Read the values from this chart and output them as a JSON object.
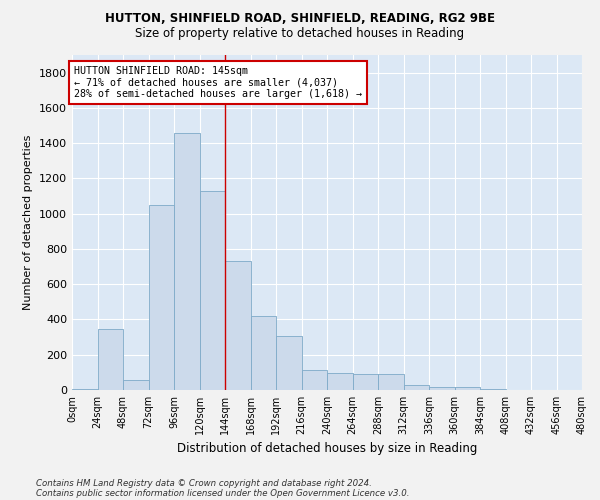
{
  "title1": "HUTTON, SHINFIELD ROAD, SHINFIELD, READING, RG2 9BE",
  "title2": "Size of property relative to detached houses in Reading",
  "xlabel": "Distribution of detached houses by size in Reading",
  "ylabel": "Number of detached properties",
  "footer1": "Contains HM Land Registry data © Crown copyright and database right 2024.",
  "footer2": "Contains public sector information licensed under the Open Government Licence v3.0.",
  "annotation_title": "HUTTON SHINFIELD ROAD: 145sqm",
  "annotation_line1": "← 71% of detached houses are smaller (4,037)",
  "annotation_line2": "28% of semi-detached houses are larger (1,618) →",
  "bar_color": "#ccdaeb",
  "bar_edge_color": "#7eaac8",
  "vline_color": "#cc0000",
  "vline_x": 144,
  "bin_edges": [
    0,
    24,
    48,
    72,
    96,
    120,
    144,
    168,
    192,
    216,
    240,
    264,
    288,
    312,
    336,
    360,
    384,
    408,
    432,
    456,
    480
  ],
  "bar_values": [
    5,
    345,
    55,
    1050,
    1460,
    1130,
    730,
    420,
    305,
    115,
    95,
    90,
    90,
    30,
    15,
    15,
    8,
    2,
    1,
    0
  ],
  "ylim": [
    0,
    1900
  ],
  "yticks": [
    0,
    200,
    400,
    600,
    800,
    1000,
    1200,
    1400,
    1600,
    1800
  ],
  "background_color": "#dce8f5",
  "grid_color": "#ffffff",
  "fig_bg": "#f2f2f2"
}
